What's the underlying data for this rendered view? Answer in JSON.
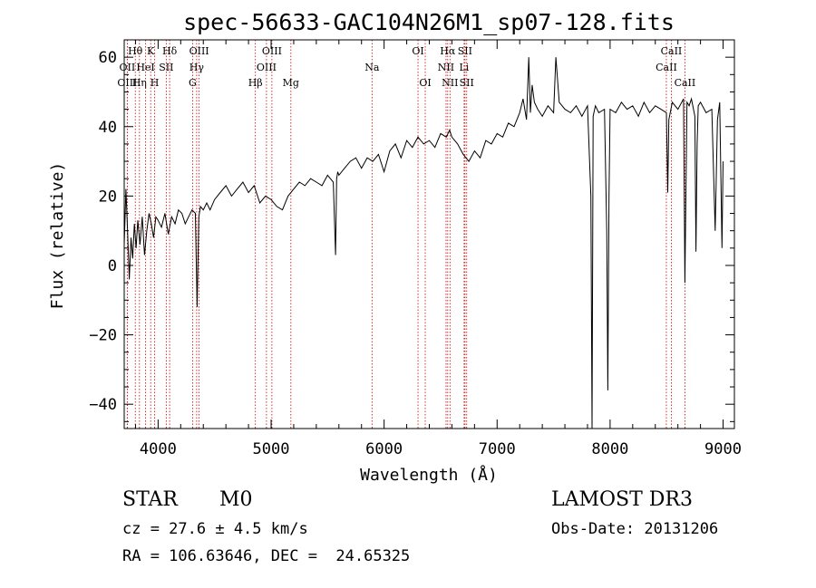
{
  "chart_data": {
    "type": "line",
    "title": "spec-56633-GAC104N26M1_sp07-128.fits",
    "xlabel": "Wavelength (Å)",
    "ylabel": "Flux (relative)",
    "xlim": [
      3700,
      9100
    ],
    "ylim": [
      -47,
      65
    ],
    "x_ticks": [
      4000,
      5000,
      6000,
      7000,
      8000,
      9000
    ],
    "y_ticks": [
      -40,
      -20,
      0,
      20,
      40,
      60
    ],
    "line_color": "#cc0000",
    "series": [
      {
        "name": "flux",
        "x": [
          3700,
          3715,
          3730,
          3745,
          3760,
          3775,
          3790,
          3805,
          3820,
          3840,
          3860,
          3880,
          3900,
          3920,
          3940,
          3960,
          3980,
          4000,
          4030,
          4060,
          4090,
          4120,
          4150,
          4180,
          4210,
          4240,
          4270,
          4300,
          4330,
          4345,
          4360,
          4375,
          4400,
          4430,
          4460,
          4500,
          4550,
          4600,
          4650,
          4700,
          4750,
          4800,
          4850,
          4900,
          4950,
          5000,
          5050,
          5100,
          5150,
          5200,
          5250,
          5300,
          5350,
          5400,
          5450,
          5500,
          5550,
          5570,
          5580,
          5590,
          5600,
          5650,
          5700,
          5750,
          5800,
          5850,
          5900,
          5950,
          6000,
          6050,
          6100,
          6150,
          6200,
          6250,
          6300,
          6350,
          6400,
          6450,
          6500,
          6550,
          6580,
          6600,
          6650,
          6700,
          6750,
          6800,
          6850,
          6900,
          6950,
          7000,
          7050,
          7100,
          7150,
          7200,
          7230,
          7260,
          7280,
          7295,
          7310,
          7330,
          7360,
          7400,
          7450,
          7500,
          7520,
          7550,
          7600,
          7650,
          7700,
          7750,
          7800,
          7830,
          7840,
          7850,
          7870,
          7900,
          7950,
          7970,
          7980,
          7990,
          8000,
          8050,
          8100,
          8150,
          8200,
          8250,
          8300,
          8350,
          8400,
          8450,
          8498,
          8510,
          8520,
          8550,
          8600,
          8650,
          8662,
          8680,
          8700,
          8720,
          8750,
          8760,
          8770,
          8780,
          8800,
          8850,
          8900,
          8930,
          8950,
          8970,
          8990,
          9000
        ],
        "y": [
          6,
          22,
          10,
          -4,
          8,
          2,
          12,
          5,
          13,
          6,
          14,
          3,
          10,
          15,
          12,
          8,
          14,
          13,
          11,
          15,
          9,
          14,
          12,
          16,
          15,
          12,
          14,
          16,
          15,
          -12,
          14,
          17,
          16,
          18,
          16,
          19,
          21,
          23,
          20,
          22,
          24,
          21,
          23,
          18,
          20,
          19,
          17,
          16,
          20,
          22,
          24,
          23,
          25,
          24,
          23,
          26,
          24,
          3,
          25,
          27,
          26,
          28,
          30,
          31,
          28,
          31,
          30,
          32,
          27,
          33,
          35,
          31,
          36,
          34,
          37,
          35,
          36,
          34,
          38,
          37,
          39,
          37,
          35,
          32,
          30,
          33,
          31,
          36,
          35,
          38,
          37,
          41,
          40,
          44,
          48,
          42,
          60,
          44,
          52,
          47,
          45,
          43,
          46,
          44,
          60,
          47,
          45,
          44,
          46,
          43,
          46,
          20,
          -47,
          43,
          46,
          44,
          45,
          10,
          -36,
          20,
          45,
          44,
          47,
          45,
          46,
          43,
          47,
          44,
          46,
          45,
          44,
          21,
          42,
          47,
          45,
          48,
          -5,
          47,
          46,
          48,
          43,
          4,
          35,
          46,
          47,
          44,
          45,
          10,
          42,
          47,
          5,
          30
        ]
      }
    ],
    "spectral_lines": [
      {
        "label": "Hθ",
        "x": 3798,
        "row": 0
      },
      {
        "label": "OII",
        "x": 3727,
        "row": 1
      },
      {
        "label": "OIII",
        "x": 3727,
        "row": 2
      },
      {
        "label": "K",
        "x": 3934,
        "row": 0
      },
      {
        "label": "HeI",
        "x": 3889,
        "row": 1
      },
      {
        "label": "Hη",
        "x": 3835,
        "row": 2
      },
      {
        "label": "H",
        "x": 3969,
        "row": 2
      },
      {
        "label": "SII",
        "x": 4072,
        "row": 1
      },
      {
        "label": "Hδ",
        "x": 4102,
        "row": 0
      },
      {
        "label": "OIII",
        "x": 4363,
        "row": 0
      },
      {
        "label": "Hγ",
        "x": 4341,
        "row": 1
      },
      {
        "label": "G",
        "x": 4305,
        "row": 2
      },
      {
        "label": "Hβ",
        "x": 4861,
        "row": 2
      },
      {
        "label": "OIII",
        "x": 5007,
        "row": 0
      },
      {
        "label": "OIII",
        "x": 4959,
        "row": 1
      },
      {
        "label": "Mg",
        "x": 5175,
        "row": 2
      },
      {
        "label": "Na",
        "x": 5893,
        "row": 1
      },
      {
        "label": "OI",
        "x": 6300,
        "row": 0
      },
      {
        "label": "OI",
        "x": 6364,
        "row": 2
      },
      {
        "label": "Hα",
        "x": 6563,
        "row": 0
      },
      {
        "label": "NII",
        "x": 6548,
        "row": 1
      },
      {
        "label": "NII",
        "x": 6583,
        "row": 2
      },
      {
        "label": "SII",
        "x": 6716,
        "row": 0
      },
      {
        "label": "Li",
        "x": 6708,
        "row": 1
      },
      {
        "label": "SII",
        "x": 6731,
        "row": 2
      },
      {
        "label": "CaII",
        "x": 8542,
        "row": 0
      },
      {
        "label": "CaII",
        "x": 8498,
        "row": 1
      },
      {
        "label": "CaII",
        "x": 8662,
        "row": 2
      }
    ]
  },
  "info": {
    "class_label": "STAR",
    "subclass": "M0",
    "survey": "LAMOST DR3",
    "redshift_line": "cz = 27.6 ± 4.5 km/s",
    "obs_date": "Obs-Date: 20131206",
    "coords": "RA = 106.63646, DEC =  24.65325"
  }
}
